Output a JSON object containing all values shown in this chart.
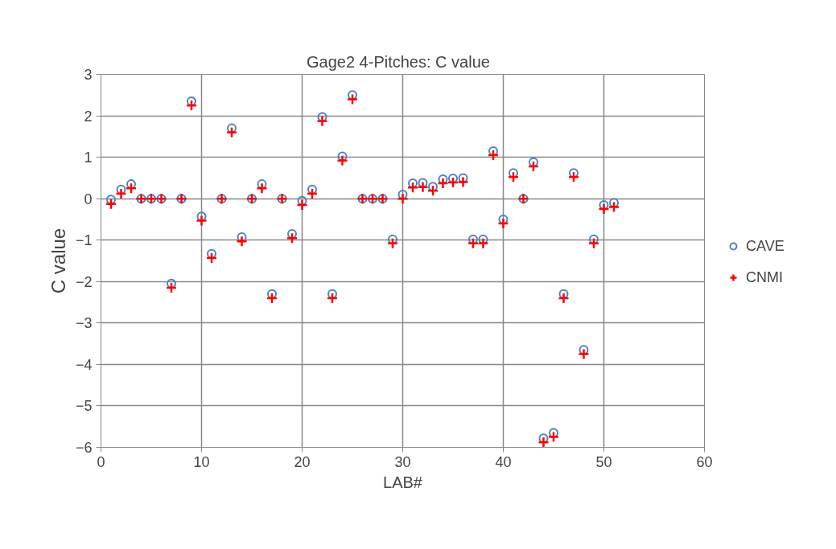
{
  "chart_data": {
    "type": "scatter",
    "title": "Gage2  4-Pitches:  C value",
    "xlabel": "LAB#",
    "ylabel": "C value",
    "x": [
      1,
      2,
      3,
      4,
      5,
      6,
      7,
      8,
      9,
      10,
      11,
      12,
      13,
      14,
      15,
      16,
      17,
      18,
      19,
      20,
      21,
      22,
      23,
      24,
      25,
      26,
      27,
      28,
      29,
      30,
      31,
      32,
      33,
      34,
      35,
      36,
      37,
      38,
      39,
      40,
      41,
      42,
      43,
      44,
      45,
      46,
      47,
      48,
      49,
      50,
      51
    ],
    "series": [
      {
        "name": "CAVE",
        "color": "#4f81bd",
        "marker": "circle",
        "values": [
          -0.02,
          0.22,
          0.35,
          0,
          0,
          0,
          -2.05,
          0,
          2.35,
          -0.43,
          -1.33,
          0,
          1.7,
          -0.93,
          0,
          0.35,
          -2.3,
          0,
          -0.85,
          -0.05,
          0.22,
          1.97,
          -2.3,
          1.02,
          2.5,
          0,
          0,
          0,
          -0.98,
          0.1,
          0.37,
          0.38,
          0.29,
          0.47,
          0.49,
          0.5,
          -0.98,
          -0.98,
          1.15,
          -0.5,
          0.62,
          0,
          0.88,
          -5.78,
          -5.65,
          -2.3,
          0.62,
          -3.65,
          -0.98,
          -0.15,
          -0.1
        ]
      },
      {
        "name": "CNMI",
        "color": "#ff0000",
        "marker": "cross",
        "values": [
          -0.13,
          0.12,
          0.25,
          0,
          0,
          0,
          -2.15,
          0,
          2.25,
          -0.53,
          -1.43,
          0,
          1.6,
          -1.03,
          0,
          0.25,
          -2.4,
          0,
          -0.95,
          -0.15,
          0.12,
          1.87,
          -2.4,
          0.92,
          2.4,
          0,
          0,
          0,
          -1.08,
          0,
          0.27,
          0.28,
          0.19,
          0.37,
          0.39,
          0.4,
          -1.08,
          -1.08,
          1.05,
          -0.6,
          0.52,
          0,
          0.78,
          -5.88,
          -5.75,
          -2.4,
          0.52,
          -3.75,
          -1.08,
          -0.25,
          -0.2
        ]
      }
    ],
    "xlim": [
      0,
      60
    ],
    "xticks": [
      0,
      10,
      20,
      30,
      40,
      50,
      60
    ],
    "ylim": [
      -6,
      3
    ],
    "yticks": [
      -6,
      -5,
      -4,
      -3,
      -2,
      -1,
      0,
      1,
      2,
      3
    ],
    "grid": true,
    "legend": "right"
  }
}
